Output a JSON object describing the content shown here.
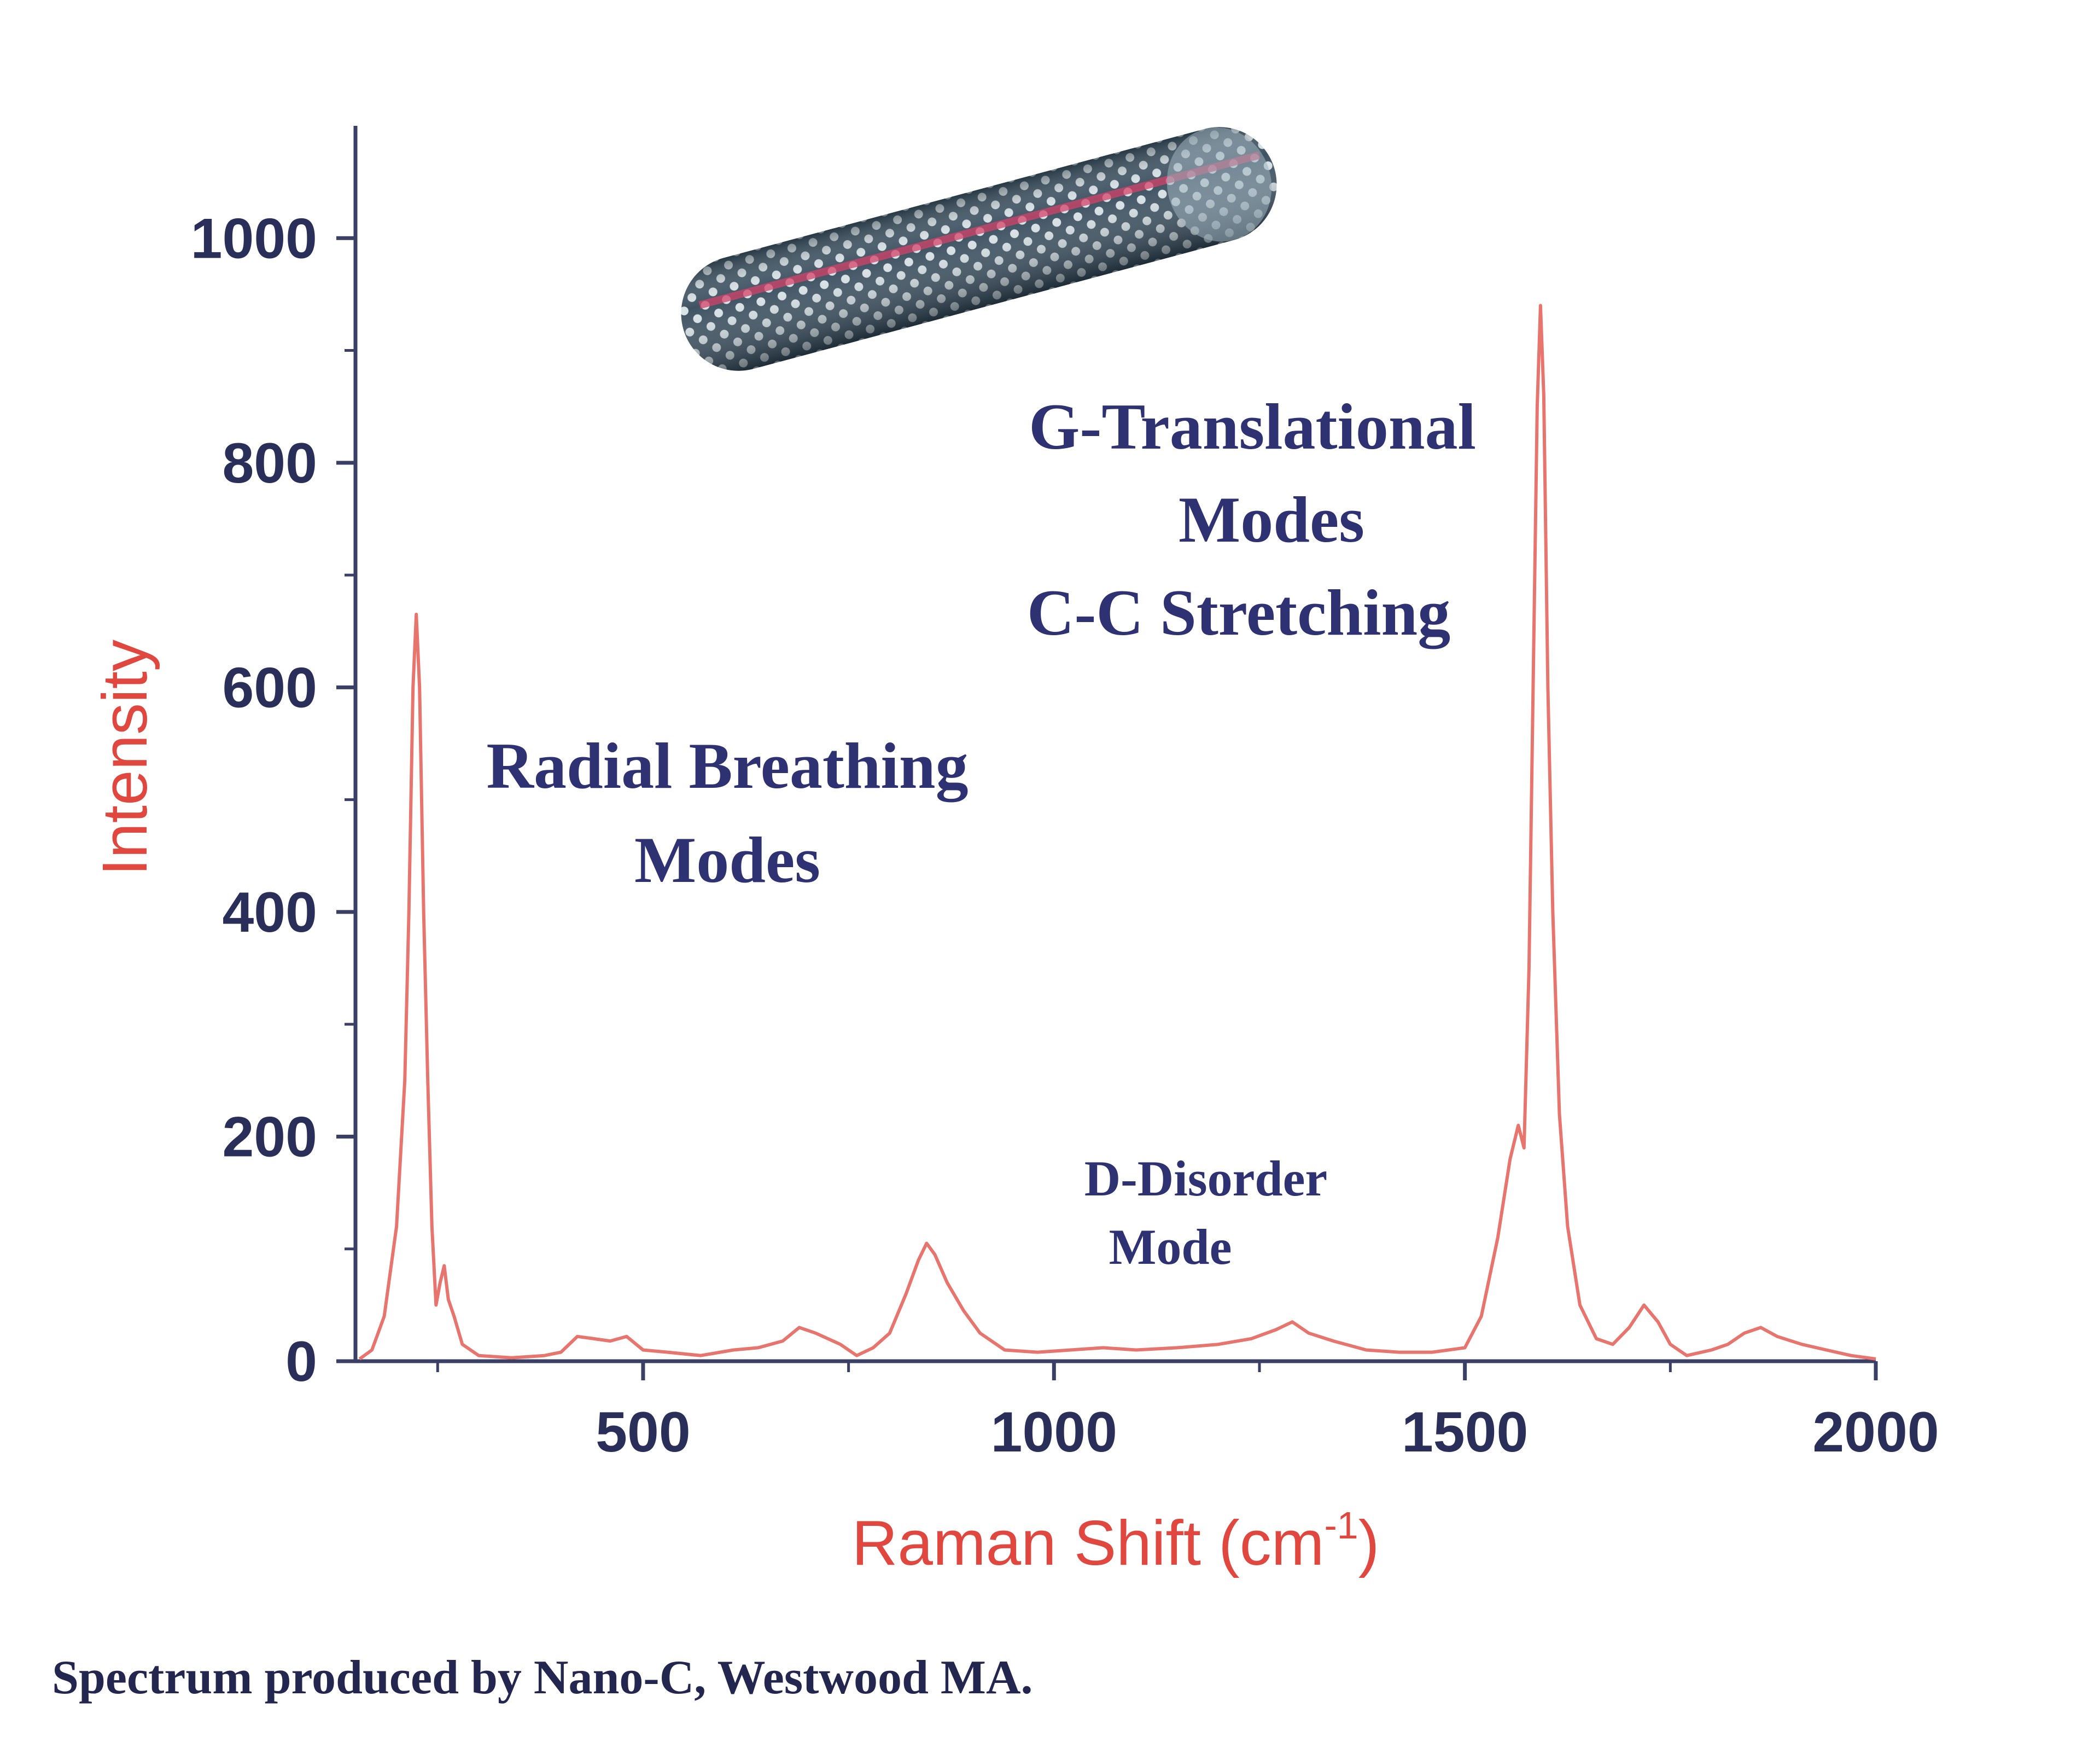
{
  "colors": {
    "spectrum": "#e8746e",
    "axis": "#3a3f66",
    "axis_title": "#e0473f",
    "annotation": "#2f3272",
    "nanotube_dark": "#2c3e4a",
    "nanotube_light": "#c9d6dc",
    "nanotube_stripe": "#d3436a"
  },
  "chart_data": {
    "type": "line",
    "xlabel": "Raman Shift (cm",
    "xlabel_sup": "-1",
    "xlabel_close": ")",
    "ylabel": "Intensity",
    "xlim": [
      150,
      2000
    ],
    "ylim": [
      0,
      1100
    ],
    "x_ticks": [
      500,
      1000,
      1500,
      2000
    ],
    "y_ticks": [
      0,
      200,
      400,
      600,
      800,
      1000
    ],
    "grid": false,
    "series": [
      {
        "points": [
          [
            155,
            2
          ],
          [
            170,
            10
          ],
          [
            185,
            40
          ],
          [
            200,
            120
          ],
          [
            210,
            250
          ],
          [
            215,
            400
          ],
          [
            220,
            600
          ],
          [
            224,
            665
          ],
          [
            228,
            600
          ],
          [
            233,
            400
          ],
          [
            238,
            250
          ],
          [
            243,
            120
          ],
          [
            248,
            50
          ],
          [
            253,
            70
          ],
          [
            258,
            85
          ],
          [
            263,
            55
          ],
          [
            270,
            40
          ],
          [
            280,
            15
          ],
          [
            300,
            5
          ],
          [
            340,
            3
          ],
          [
            380,
            5
          ],
          [
            400,
            8
          ],
          [
            420,
            22
          ],
          [
            440,
            20
          ],
          [
            460,
            18
          ],
          [
            480,
            22
          ],
          [
            500,
            10
          ],
          [
            530,
            8
          ],
          [
            570,
            5
          ],
          [
            610,
            10
          ],
          [
            640,
            12
          ],
          [
            670,
            18
          ],
          [
            690,
            30
          ],
          [
            710,
            25
          ],
          [
            740,
            15
          ],
          [
            760,
            5
          ],
          [
            780,
            12
          ],
          [
            800,
            25
          ],
          [
            820,
            60
          ],
          [
            835,
            90
          ],
          [
            845,
            105
          ],
          [
            855,
            95
          ],
          [
            870,
            70
          ],
          [
            890,
            45
          ],
          [
            910,
            25
          ],
          [
            940,
            10
          ],
          [
            980,
            8
          ],
          [
            1020,
            10
          ],
          [
            1060,
            12
          ],
          [
            1100,
            10
          ],
          [
            1150,
            12
          ],
          [
            1200,
            15
          ],
          [
            1240,
            20
          ],
          [
            1270,
            28
          ],
          [
            1290,
            35
          ],
          [
            1310,
            25
          ],
          [
            1340,
            18
          ],
          [
            1380,
            10
          ],
          [
            1420,
            8
          ],
          [
            1460,
            8
          ],
          [
            1500,
            12
          ],
          [
            1520,
            40
          ],
          [
            1540,
            110
          ],
          [
            1555,
            180
          ],
          [
            1565,
            210
          ],
          [
            1572,
            190
          ],
          [
            1578,
            350
          ],
          [
            1583,
            600
          ],
          [
            1588,
            850
          ],
          [
            1592,
            940
          ],
          [
            1596,
            860
          ],
          [
            1601,
            600
          ],
          [
            1607,
            400
          ],
          [
            1615,
            220
          ],
          [
            1625,
            120
          ],
          [
            1640,
            50
          ],
          [
            1660,
            20
          ],
          [
            1680,
            15
          ],
          [
            1700,
            30
          ],
          [
            1718,
            50
          ],
          [
            1735,
            35
          ],
          [
            1750,
            15
          ],
          [
            1770,
            5
          ],
          [
            1800,
            10
          ],
          [
            1820,
            15
          ],
          [
            1840,
            25
          ],
          [
            1860,
            30
          ],
          [
            1880,
            22
          ],
          [
            1910,
            15
          ],
          [
            1940,
            10
          ],
          [
            1970,
            5
          ],
          [
            2000,
            2
          ]
        ]
      }
    ],
    "annotations": [
      {
        "id": "rbm",
        "lines": [
          "Radial Breathing",
          "Modes"
        ]
      },
      {
        "id": "g",
        "lines": [
          "G-Translational",
          "Modes",
          "C-C Stretching"
        ]
      },
      {
        "id": "d",
        "lines": [
          "D-Disorder",
          "Mode"
        ]
      }
    ]
  },
  "credit": "Spectrum produced by Nano-C, Westwood MA."
}
